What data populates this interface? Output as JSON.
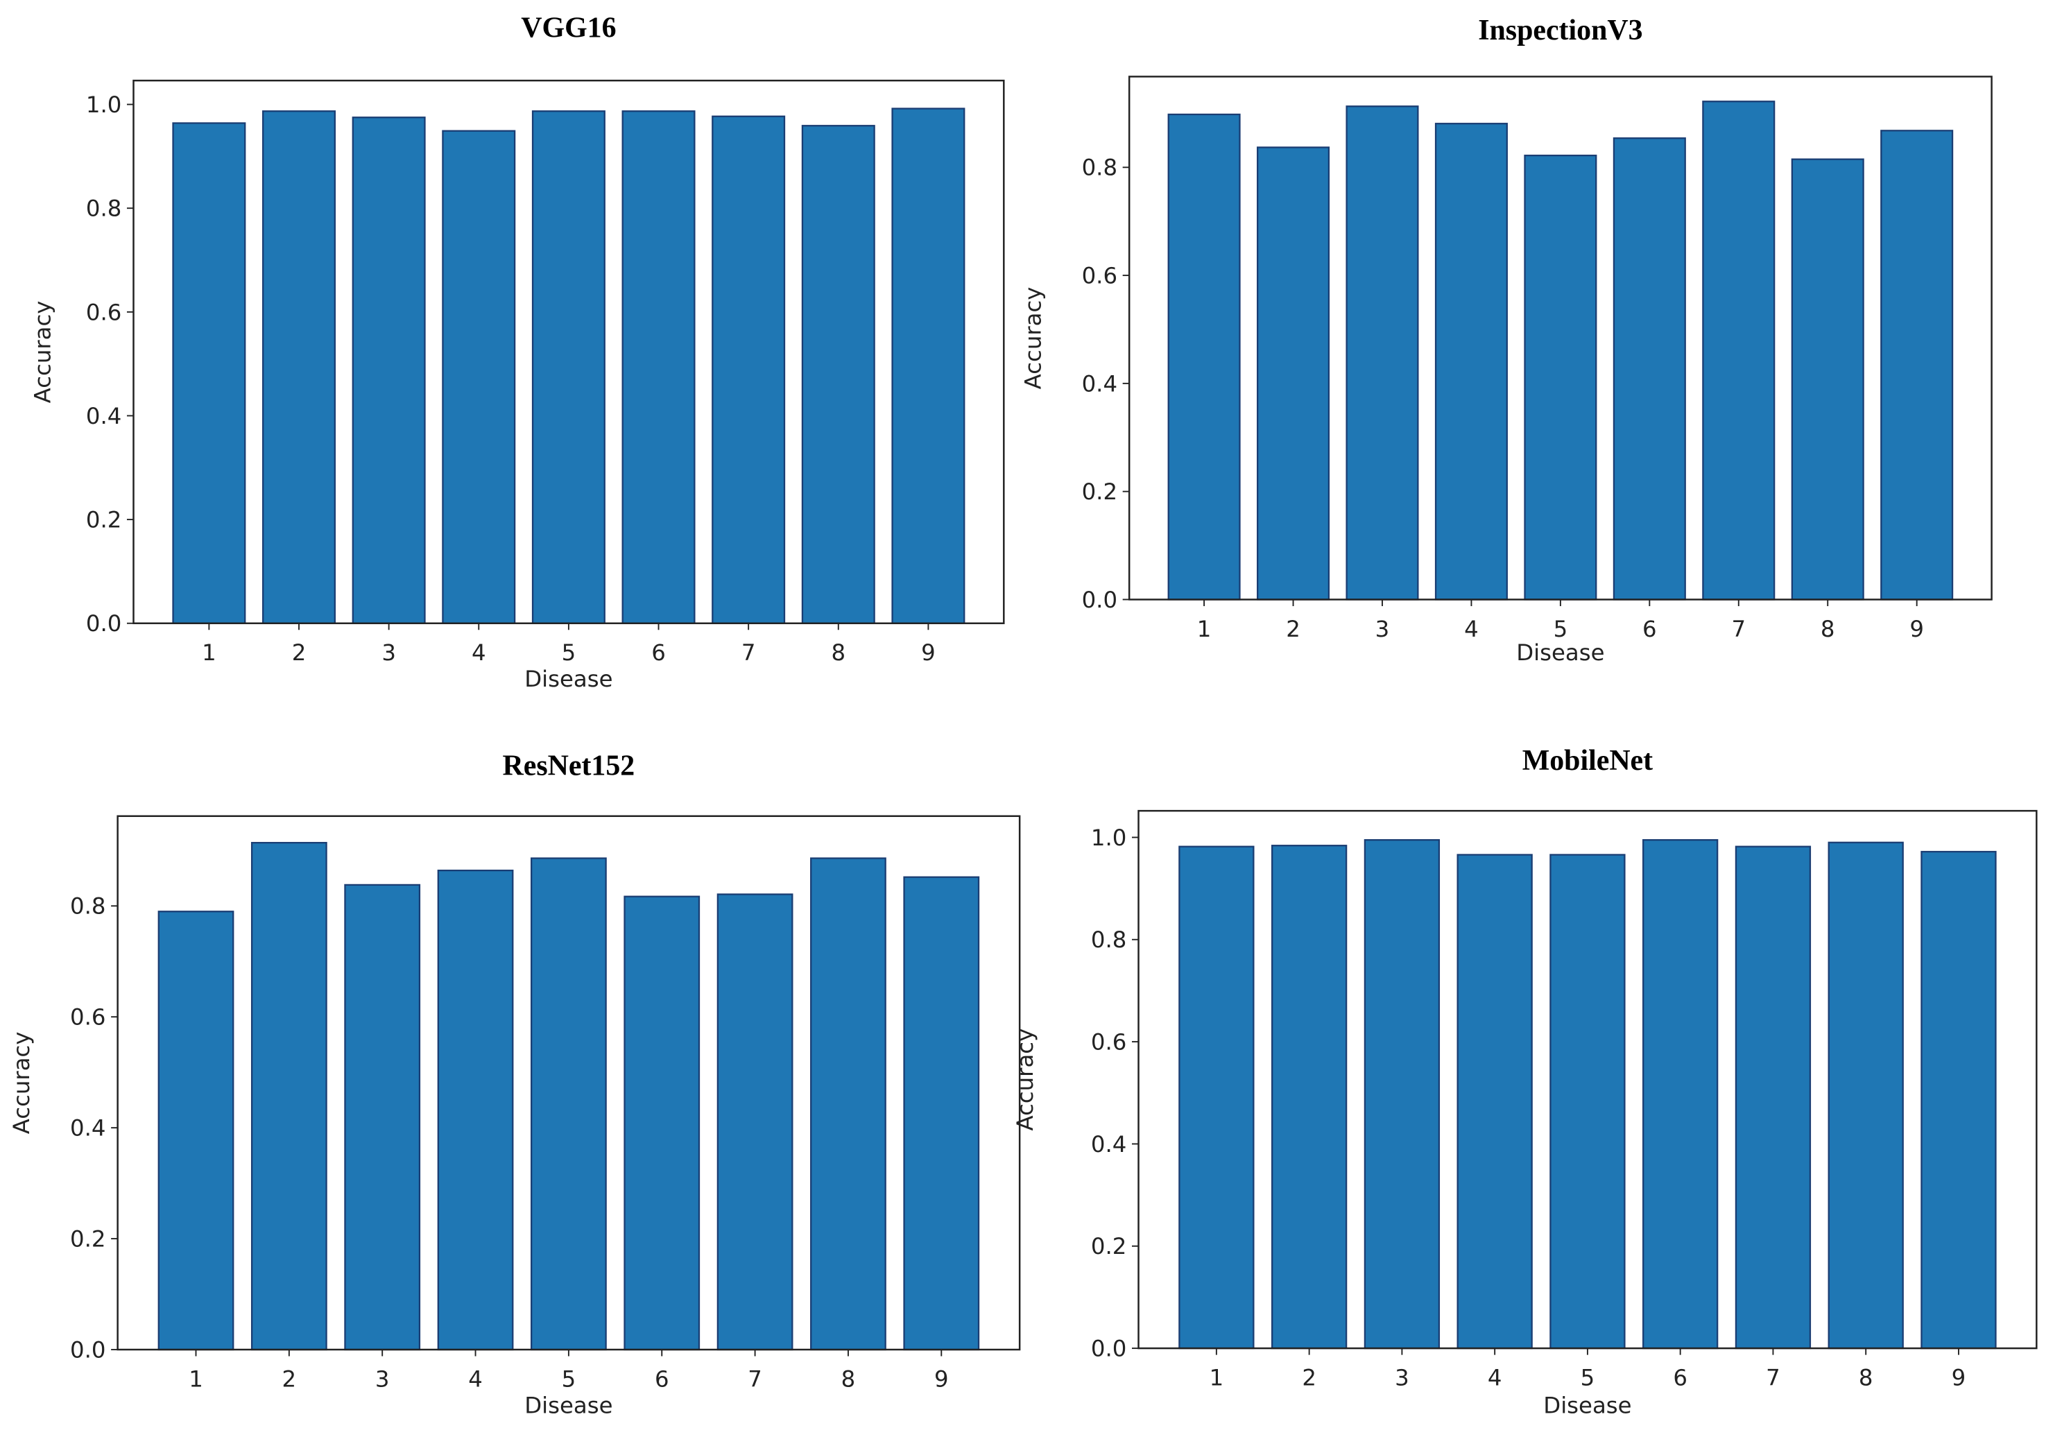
{
  "chart_data": [
    {
      "type": "bar",
      "title": "VGG16",
      "xlabel": "Disease",
      "ylabel": "Accuracy",
      "color": "#1f77b4",
      "edgecolor": "#1a3d73",
      "categories": [
        "1",
        "2",
        "3",
        "4",
        "5",
        "6",
        "7",
        "8",
        "9"
      ],
      "values": [
        0.964,
        0.987,
        0.975,
        0.949,
        0.987,
        0.987,
        0.977,
        0.959,
        0.992
      ],
      "ylim": [
        0,
        1.046
      ],
      "yticks": [
        {
          "value": 0,
          "label": "0.0"
        },
        {
          "value": 0.2,
          "label": "0.2"
        },
        {
          "value": 0.4,
          "label": "0.4"
        },
        {
          "value": 0.6,
          "label": "0.6"
        },
        {
          "value": 0.8,
          "label": "0.8"
        },
        {
          "value": 1,
          "label": "1.0"
        }
      ]
    },
    {
      "type": "bar",
      "title": "InspectionV3",
      "xlabel": "Disease",
      "ylabel": "Accuracy",
      "color": "#1f77b4",
      "edgecolor": "#1a3d73",
      "categories": [
        "1",
        "2",
        "3",
        "4",
        "5",
        "6",
        "7",
        "8",
        "9"
      ],
      "values": [
        0.898,
        0.837,
        0.913,
        0.881,
        0.822,
        0.854,
        0.922,
        0.815,
        0.868
      ],
      "ylim": [
        0,
        0.968
      ],
      "yticks": [
        {
          "value": 0,
          "label": "0.0"
        },
        {
          "value": 0.2,
          "label": "0.2"
        },
        {
          "value": 0.4,
          "label": "0.4"
        },
        {
          "value": 0.6,
          "label": "0.6"
        },
        {
          "value": 0.8,
          "label": "0.8"
        }
      ]
    },
    {
      "type": "bar",
      "title": "ResNet152",
      "xlabel": "Disease",
      "ylabel": "Accuracy",
      "color": "#1f77b4",
      "edgecolor": "#1a3d73",
      "categories": [
        "1",
        "2",
        "3",
        "4",
        "5",
        "6",
        "7",
        "8",
        "9"
      ],
      "values": [
        0.79,
        0.914,
        0.838,
        0.864,
        0.886,
        0.817,
        0.821,
        0.886,
        0.852
      ],
      "ylim": [
        0,
        0.962
      ],
      "yticks": [
        {
          "value": 0,
          "label": "0.0"
        },
        {
          "value": 0.2,
          "label": "0.2"
        },
        {
          "value": 0.4,
          "label": "0.4"
        },
        {
          "value": 0.6,
          "label": "0.6"
        },
        {
          "value": 0.8,
          "label": "0.8"
        }
      ]
    },
    {
      "type": "bar",
      "title": "MobileNet",
      "xlabel": "Disease",
      "ylabel": "Accuracy",
      "color": "#1f77b4",
      "edgecolor": "#1a3d73",
      "categories": [
        "1",
        "2",
        "3",
        "4",
        "5",
        "6",
        "7",
        "8",
        "9"
      ],
      "values": [
        0.982,
        0.984,
        0.995,
        0.966,
        0.966,
        0.995,
        0.982,
        0.99,
        0.972
      ],
      "ylim": [
        0,
        1.052
      ],
      "yticks": [
        {
          "value": 0,
          "label": "0.0"
        },
        {
          "value": 0.2,
          "label": "0.2"
        },
        {
          "value": 0.4,
          "label": "0.4"
        },
        {
          "value": 0.6,
          "label": "0.6"
        },
        {
          "value": 0.8,
          "label": "0.8"
        },
        {
          "value": 1,
          "label": "1.0"
        }
      ]
    }
  ]
}
